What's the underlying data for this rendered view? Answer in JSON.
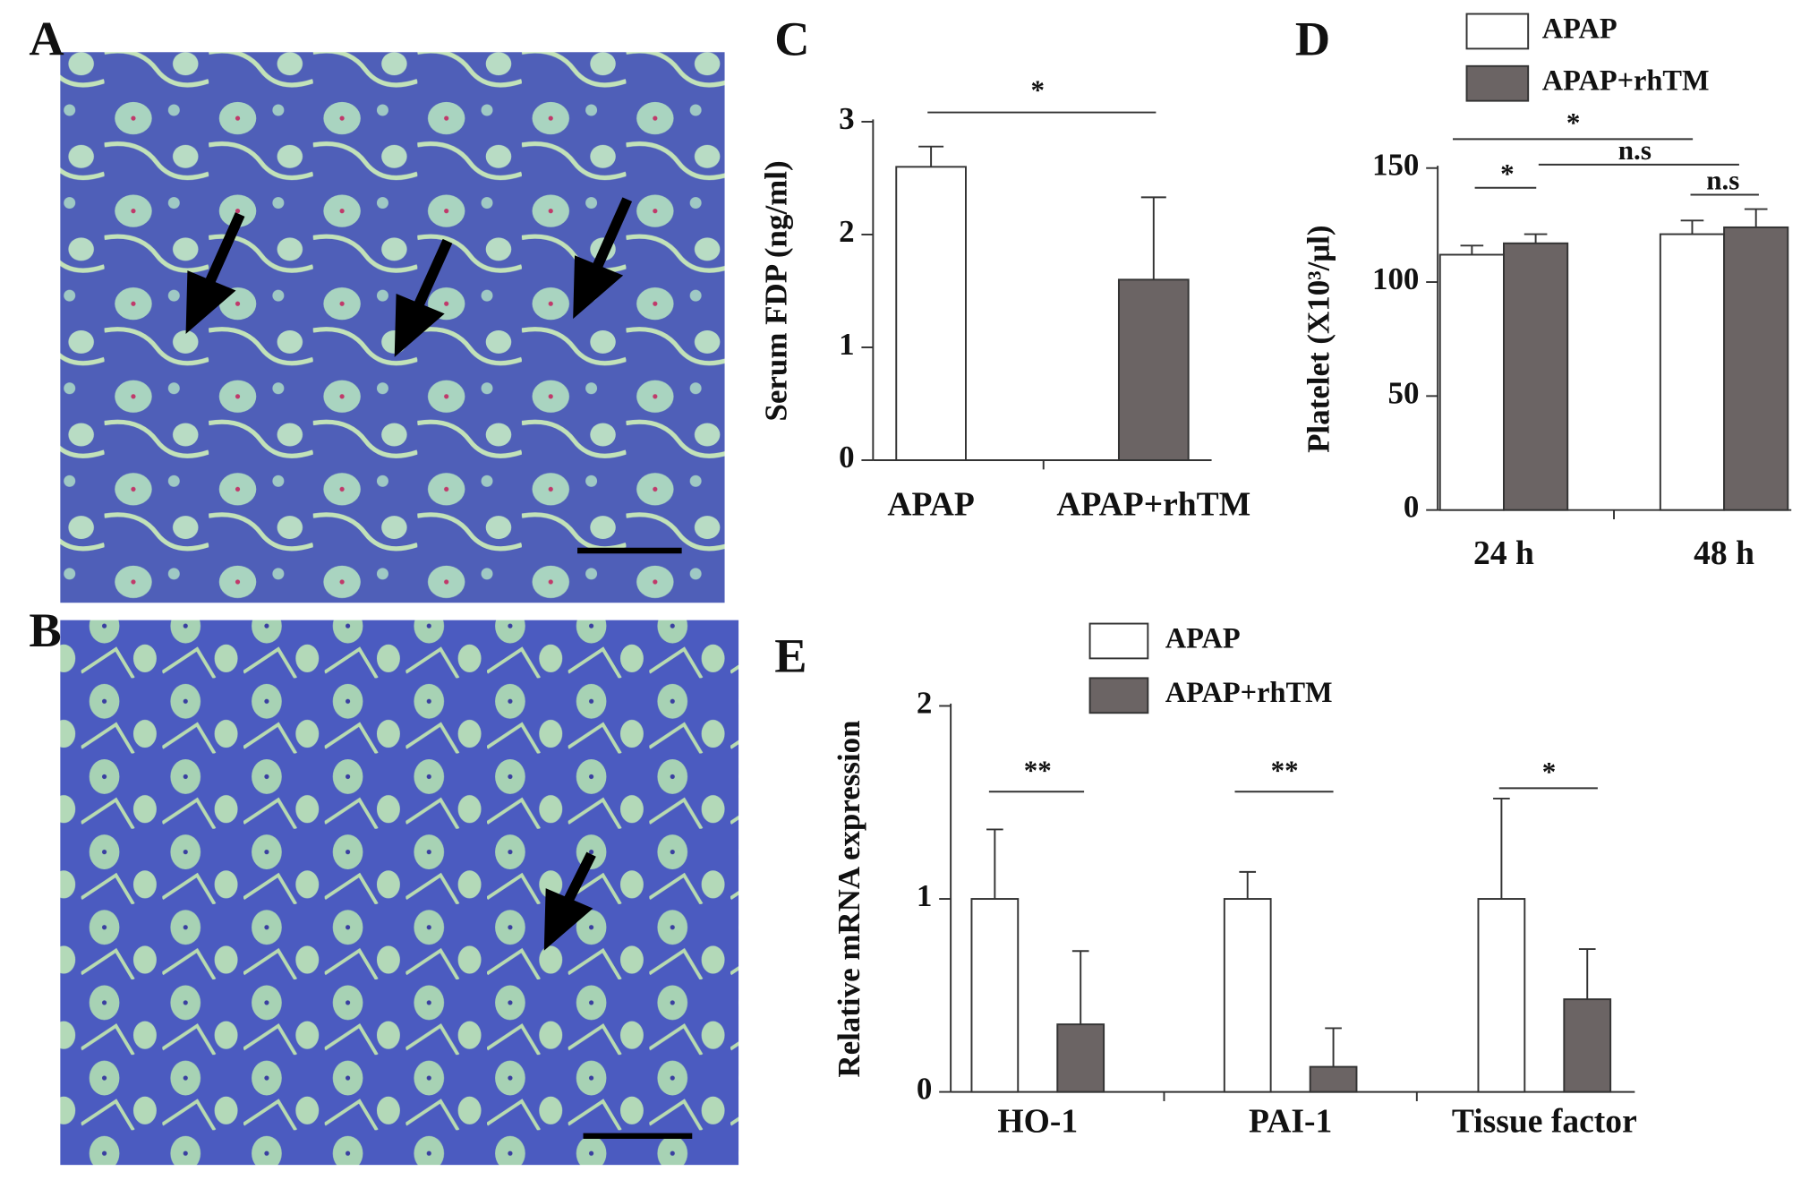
{
  "panels": [
    "A",
    "B",
    "C",
    "D",
    "E"
  ],
  "chart_data": [
    {
      "type": "bar",
      "ylabel": "Serum FDP  (ng/ml)",
      "categories": [
        "APAP",
        "APAP+rhTM"
      ],
      "values": [
        2.6,
        1.6
      ],
      "errors": [
        0.18,
        0.73
      ],
      "colors": [
        "#ffffff",
        "#6b6464"
      ],
      "ylim": [
        0,
        3
      ],
      "yticks": [
        0,
        1,
        2,
        3
      ],
      "annotations": [
        "*"
      ]
    },
    {
      "type": "bar",
      "ylabel": "Platelet  (X10³/μl)",
      "categories": [
        "24 h",
        "48 h"
      ],
      "series": [
        {
          "name": "APAP",
          "color": "#ffffff",
          "values": [
            112,
            121
          ],
          "errors": [
            4,
            6
          ]
        },
        {
          "name": "APAP+rhTM",
          "color": "#6b6464",
          "values": [
            117,
            124
          ],
          "errors": [
            4,
            8
          ]
        }
      ],
      "ylim": [
        0,
        150
      ],
      "yticks": [
        0,
        50,
        100,
        150
      ],
      "annotations": [
        "*",
        "n.s",
        "*",
        "n.s"
      ]
    },
    {
      "type": "bar",
      "ylabel": "Relative mRNA expression",
      "categories": [
        "HO-1",
        "PAI-1",
        "Tissue  factor"
      ],
      "series": [
        {
          "name": "APAP",
          "color": "#ffffff",
          "values": [
            1,
            1,
            1
          ],
          "errors": [
            0.36,
            0.14,
            0.52
          ]
        },
        {
          "name": "APAP+rhTM",
          "color": "#6b6464",
          "values": [
            0.35,
            0.13,
            0.48
          ],
          "errors": [
            0.38,
            0.2,
            0.26
          ]
        }
      ],
      "ylim": [
        0,
        2
      ],
      "yticks": [
        0,
        1,
        2
      ],
      "annotations": [
        "**",
        "**",
        "*"
      ]
    }
  ]
}
